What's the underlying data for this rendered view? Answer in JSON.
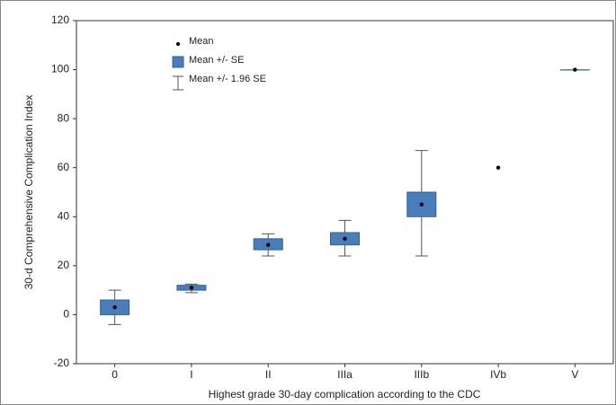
{
  "chart_data": {
    "type": "box",
    "x_label": "Highest grade 30-day complication according to the CDC",
    "y_label": "30-d Comprehensive Complication Index",
    "categories": [
      "0",
      "I",
      "II",
      "IIIa",
      "IIIb",
      "IVb",
      "V"
    ],
    "mean": [
      3,
      11,
      28.5,
      31,
      45,
      60,
      100
    ],
    "se_low": [
      0,
      10,
      26.5,
      28.5,
      40,
      null,
      100
    ],
    "se_high": [
      6,
      12,
      31,
      33.5,
      50,
      null,
      100
    ],
    "ci_low": [
      -4,
      9,
      24,
      24,
      24,
      null,
      null
    ],
    "ci_high": [
      10,
      12.5,
      33,
      38.5,
      67,
      null,
      null
    ],
    "legend": [
      "Mean",
      "Mean +/- SE",
      "Mean +/- 1.96 SE"
    ],
    "box_color": "#4a7ebb",
    "ylim": [
      -20,
      120
    ],
    "yticks": [
      -20,
      0,
      20,
      40,
      60,
      80,
      100,
      120
    ]
  }
}
